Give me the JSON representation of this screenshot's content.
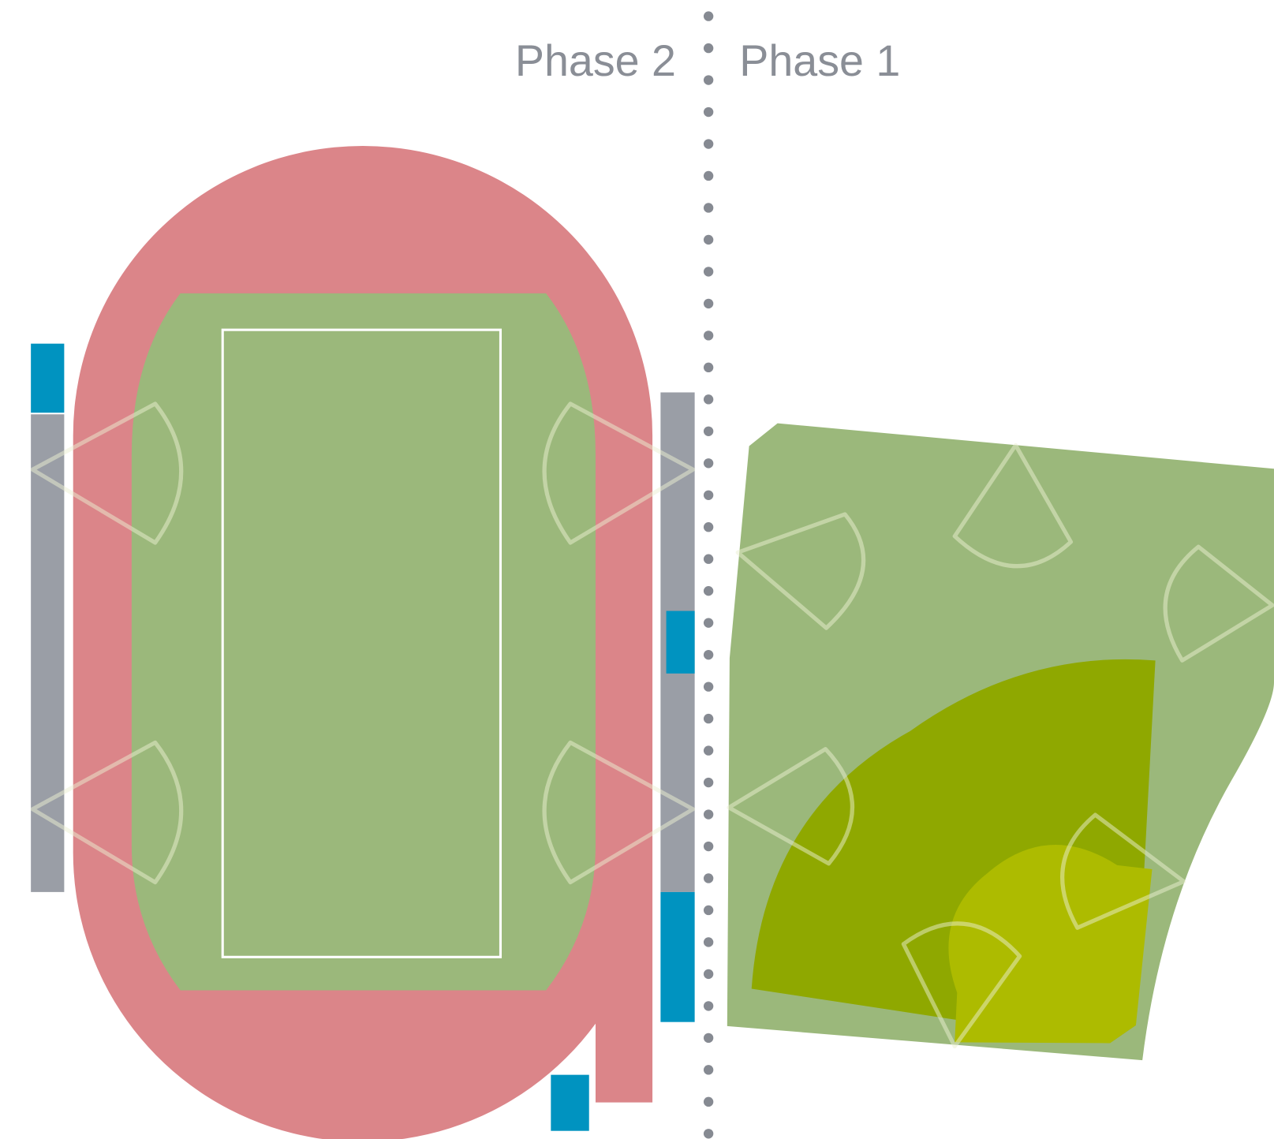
{
  "labels": {
    "left": "Phase 2",
    "right": "Phase 1"
  }
}
